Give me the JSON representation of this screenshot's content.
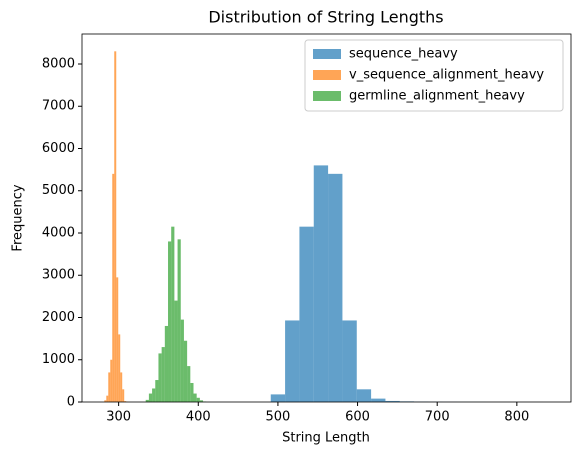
{
  "chart_data": {
    "type": "histogram",
    "title": "Distribution of String Lengths",
    "xlabel": "String Length",
    "ylabel": "Frequency",
    "alpha": 0.7,
    "legend": "upper right",
    "grid": false,
    "xlim": [
      254,
      868
    ],
    "ylim": [
      0,
      8710
    ],
    "xticks": [
      300,
      400,
      500,
      600,
      700,
      800
    ],
    "yticks": [
      0,
      1000,
      2000,
      3000,
      4000,
      5000,
      6000,
      7000,
      8000
    ],
    "series": [
      {
        "name": "sequence_heavy",
        "color": "#1f77b4",
        "bins": [
          491,
          509,
          527,
          545,
          563,
          581,
          599,
          617,
          635,
          653,
          671,
          689,
          707,
          725,
          743,
          761,
          779,
          797,
          815,
          833
        ],
        "values": [
          180,
          1930,
          4150,
          5600,
          5400,
          1930,
          300,
          80,
          25,
          15,
          8,
          5,
          3,
          2,
          2,
          1,
          1,
          1,
          1
        ]
      },
      {
        "name": "v_sequence_alignment_heavy",
        "color": "#ff7f0e",
        "bins": [
          282,
          284.5,
          287,
          289.5,
          292,
          294.5,
          297,
          299.5,
          302,
          304.5,
          307,
          309.5,
          312
        ],
        "values": [
          40,
          150,
          700,
          1000,
          5400,
          8300,
          2950,
          1600,
          700,
          300,
          20,
          5
        ]
      },
      {
        "name": "germline_alignment_heavy",
        "color": "#2ca02c",
        "bins": [
          334,
          338,
          342,
          346,
          350,
          354,
          358,
          362,
          366,
          370,
          374,
          378,
          382,
          386,
          390,
          394,
          398,
          402,
          406,
          410
        ],
        "values": [
          50,
          200,
          320,
          520,
          1150,
          1300,
          1800,
          3800,
          4150,
          2400,
          3850,
          1950,
          1450,
          850,
          450,
          200,
          100,
          40,
          10
        ]
      }
    ]
  }
}
